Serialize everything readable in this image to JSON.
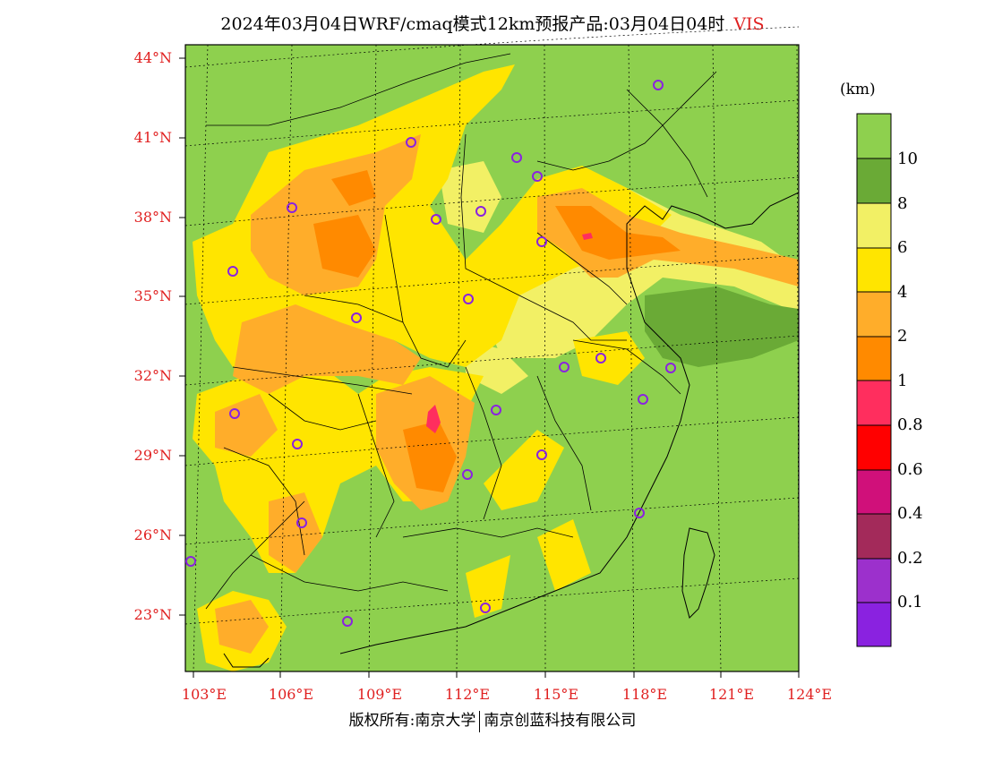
{
  "title": {
    "main": "2024年03月04日WRF/cmaq模式12km预报产品:03月04日04时",
    "variable": "VIS"
  },
  "axes": {
    "lat_labels": [
      "44°N",
      "41°N",
      "38°N",
      "35°N",
      "32°N",
      "29°N",
      "26°N",
      "23°N"
    ],
    "lon_labels": [
      "103°E",
      "106°E",
      "109°E",
      "112°E",
      "115°E",
      "118°E",
      "121°E",
      "124°E"
    ]
  },
  "colorbar": {
    "unit": "(km)",
    "labels": [
      "10",
      "8",
      "6",
      "4",
      "2",
      "1",
      "0.8",
      "0.6",
      "0.4",
      "0.2",
      "0.1"
    ],
    "colors": [
      "#8ed04e",
      "#6aaa36",
      "#f2f065",
      "#ffe500",
      "#ffad2a",
      "#ff8a00",
      "#ff2e5e",
      "#ff0000",
      "#d0107a",
      "#a32a5a",
      "#9c30cc",
      "#8a22e0"
    ]
  },
  "stations_color": "#8a22e0",
  "footer": {
    "left": "版权所有:南京大学",
    "right": "南京创蓝科技有限公司"
  }
}
